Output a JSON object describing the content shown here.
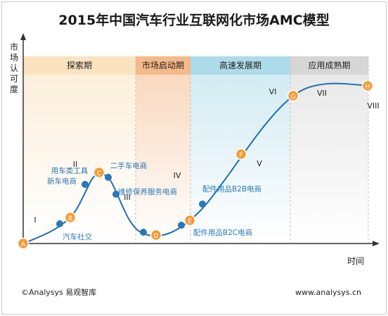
{
  "title": "2015年中国汽车行业互联网化市场AMC模型",
  "ylabel": "市场认可度",
  "xlabel": "时间",
  "footer": {
    "source": "©Analysys 易观智库",
    "website": "www.analysys.cn"
  },
  "chart_data": {
    "type": "line",
    "title": "2015年中国汽车行业互联网化市场AMC模型",
    "xlabel": "时间",
    "ylabel": "市场认可度",
    "stages": [
      {
        "name": "探索期",
        "color": "#fbe3c0"
      },
      {
        "name": "市场启动期",
        "color": "#f6b98a"
      },
      {
        "name": "高速发展期",
        "color": "#aedbe9"
      },
      {
        "name": "应用成熟期",
        "color": "#d6d6d6"
      }
    ],
    "phase_numerals": [
      "I",
      "II",
      "III",
      "IV",
      "V",
      "VI",
      "VII",
      "VIII"
    ],
    "points": [
      {
        "label": "A",
        "color": "#f39c36"
      },
      {
        "label": "B",
        "color": "#f39c36"
      },
      {
        "label": "C",
        "color": "#f39c36"
      },
      {
        "label": "D",
        "color": "#f39c36"
      },
      {
        "label": "E",
        "color": "#f39c36"
      },
      {
        "label": "F",
        "color": "#f39c36"
      },
      {
        "label": "G",
        "color": "#f39c36"
      },
      {
        "label": "H",
        "color": "#f39c36"
      }
    ],
    "apps": [
      {
        "name": "汽车社交",
        "color": "#2a78b8"
      },
      {
        "name": "新车电商",
        "color": "#2a78b8"
      },
      {
        "name": "用车类工具",
        "color": "#2a78b8"
      },
      {
        "name": "二手车电商",
        "color": "#2a78b8"
      },
      {
        "name": "维修保养服务电商",
        "color": "#2a78b8"
      },
      {
        "name": "配件用品B2C电商",
        "color": "#2a78b8"
      },
      {
        "name": "配件用品B2B电商",
        "color": "#2a78b8"
      }
    ],
    "curve_color": "#1f6fb2",
    "point_fill": "#f39c36",
    "app_dot_color": "#2a78b8"
  }
}
